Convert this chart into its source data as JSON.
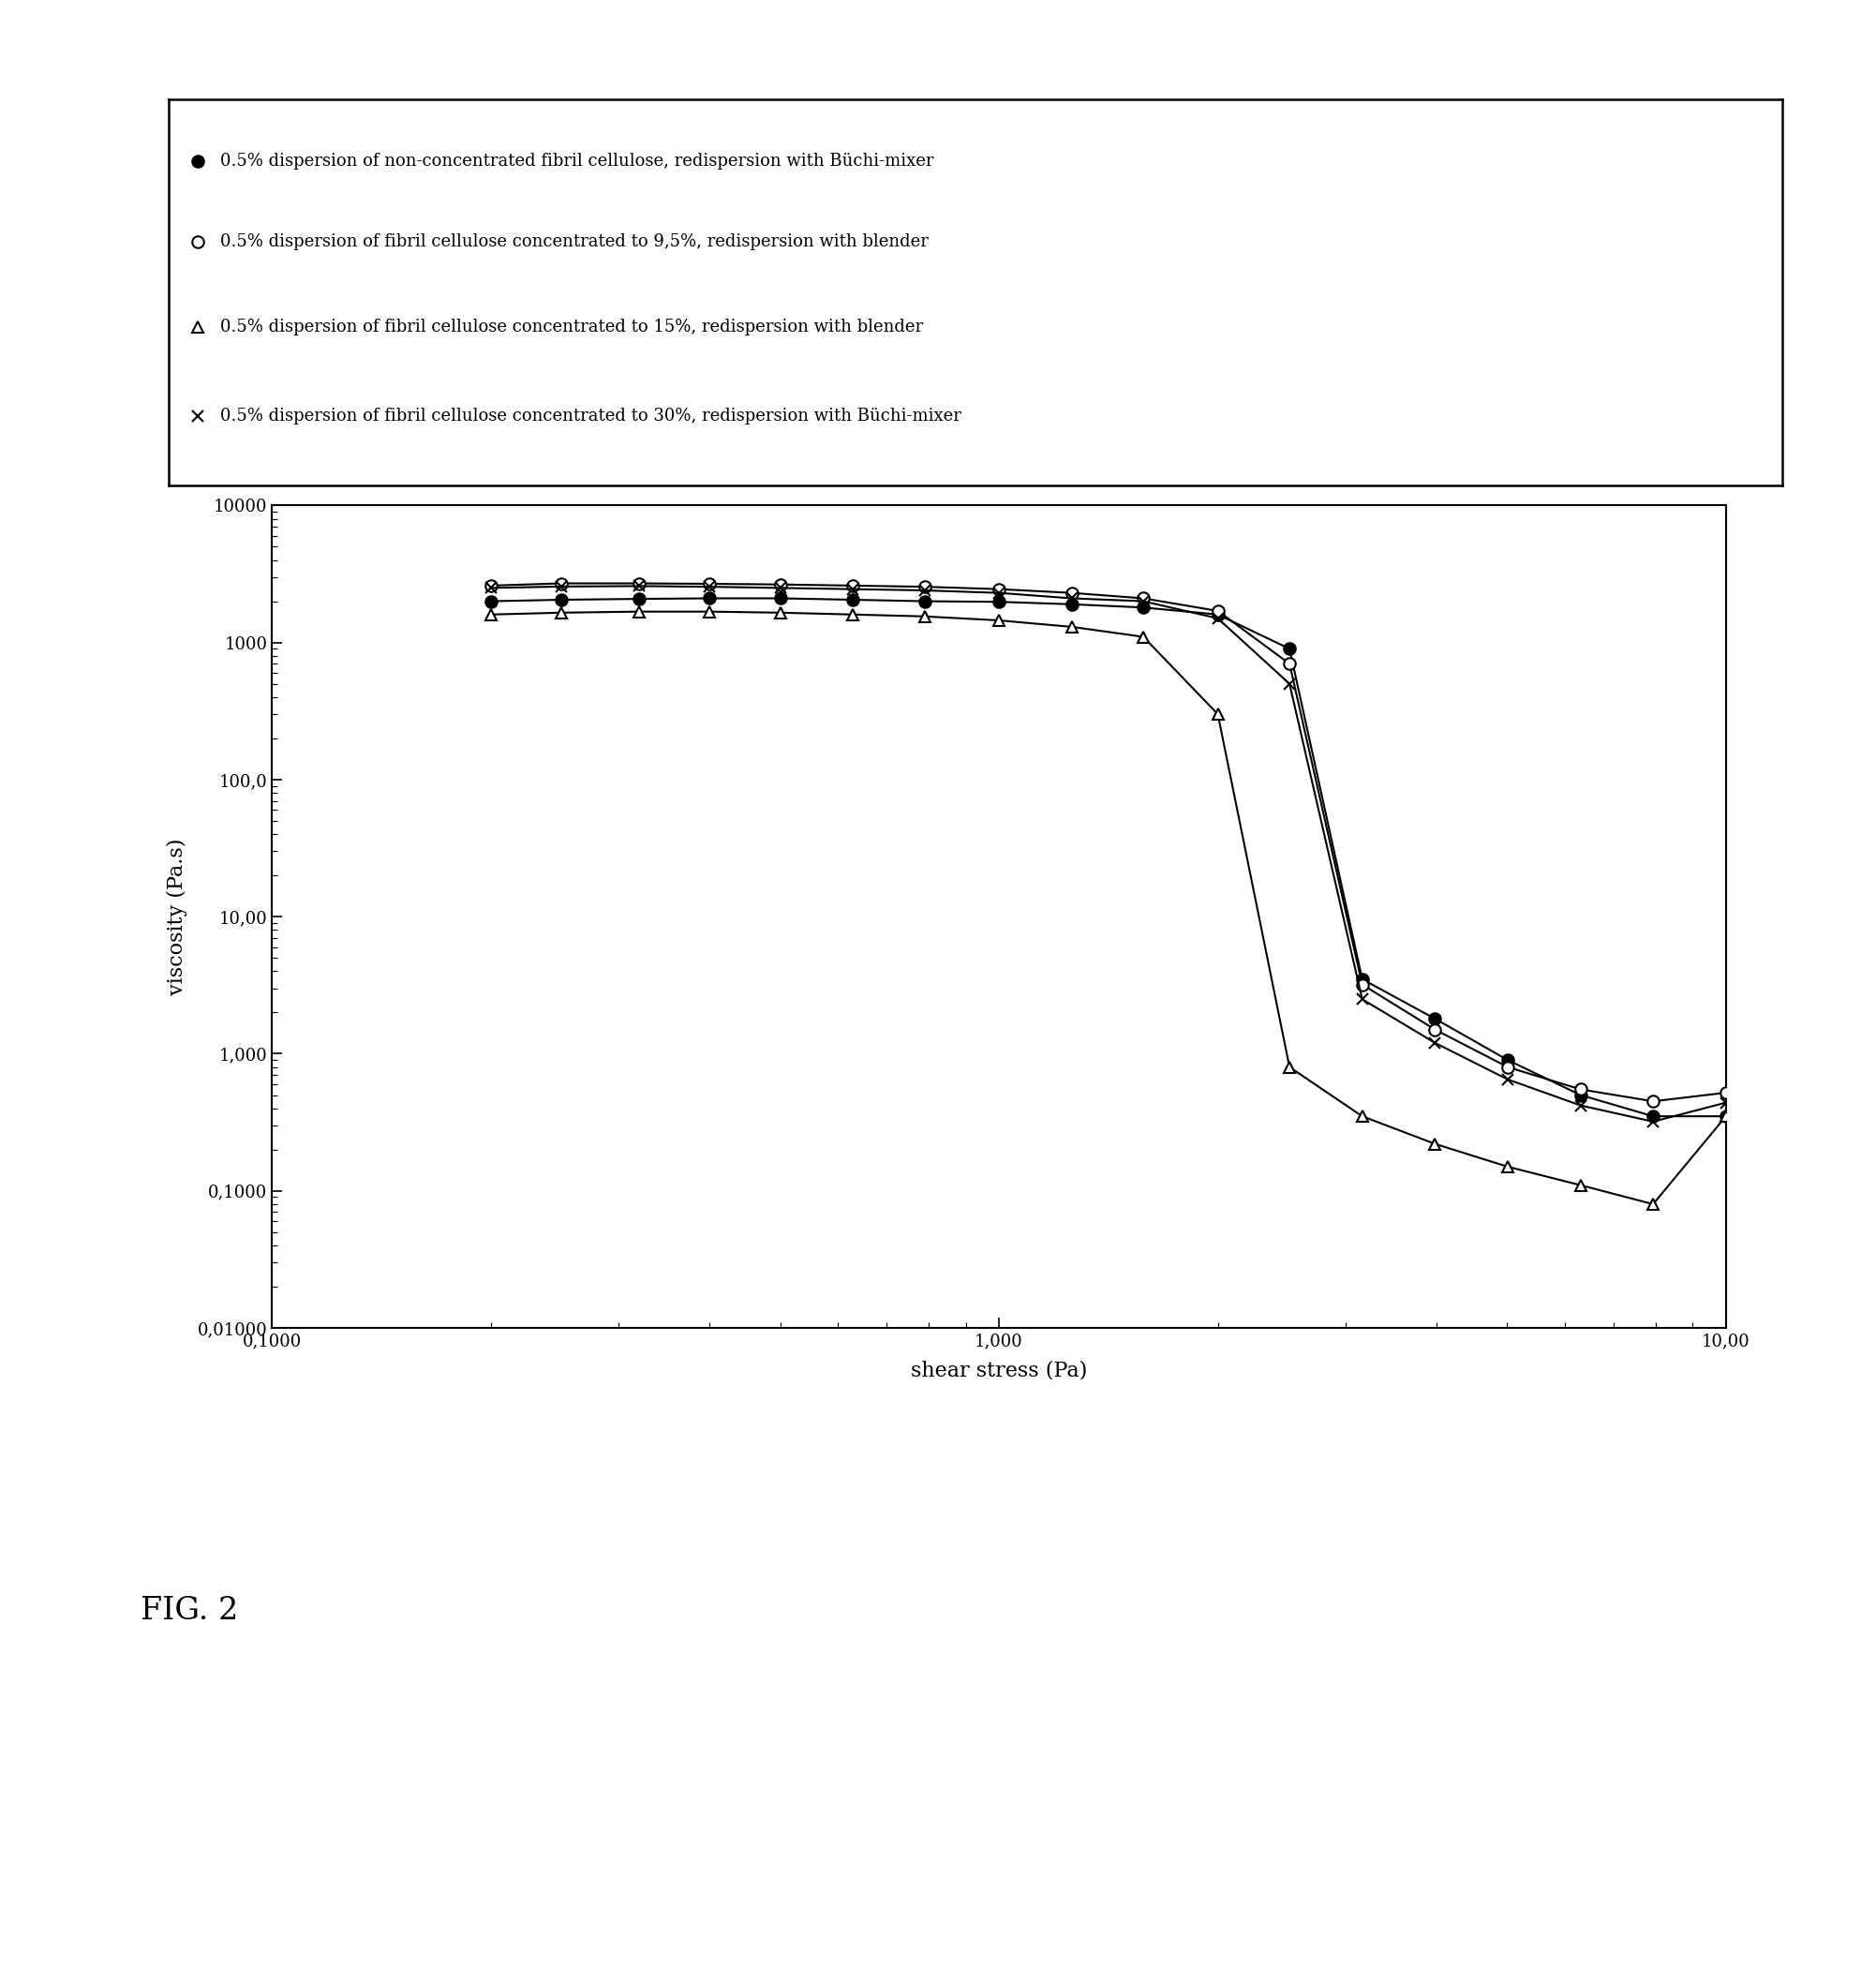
{
  "legend_entries": [
    "0.5% dispersion of non-concentrated fibril cellulose, redispersion with Büchi-mixer",
    "0.5% dispersion of fibril cellulose concentrated to 9,5%, redispersion with blender",
    "0.5% dispersion of fibril cellulose concentrated to 15%, redispersion with blender",
    "0.5% dispersion of fibril cellulose concentrated to 30%, redispersion with Büchi-mixer"
  ],
  "xlabel": "shear stress (Pa)",
  "ylabel": "viscosity (Pa.s)",
  "fig_label": "FIG. 2",
  "series": [
    {
      "name": "filled_circle",
      "x": [
        0.2,
        0.25,
        0.32,
        0.4,
        0.5,
        0.63,
        0.79,
        1.0,
        1.26,
        1.58,
        2.0,
        2.51,
        3.16,
        3.98,
        5.01,
        6.31,
        7.94,
        10.0
      ],
      "y": [
        2000,
        2050,
        2080,
        2100,
        2100,
        2050,
        2000,
        1980,
        1900,
        1800,
        1600,
        900,
        3.5,
        1.8,
        0.9,
        0.5,
        0.35,
        0.35
      ]
    },
    {
      "name": "open_circle",
      "x": [
        0.2,
        0.25,
        0.32,
        0.4,
        0.5,
        0.63,
        0.79,
        1.0,
        1.26,
        1.58,
        2.0,
        2.51,
        3.16,
        3.98,
        5.01,
        6.31,
        7.94,
        10.0
      ],
      "y": [
        2600,
        2700,
        2700,
        2680,
        2650,
        2600,
        2550,
        2450,
        2300,
        2100,
        1700,
        700,
        3.2,
        1.5,
        0.8,
        0.55,
        0.45,
        0.52
      ]
    },
    {
      "name": "open_triangle",
      "x": [
        0.2,
        0.25,
        0.32,
        0.4,
        0.5,
        0.63,
        0.79,
        1.0,
        1.26,
        1.58,
        2.0,
        2.51,
        3.16,
        3.98,
        5.01,
        6.31,
        7.94,
        10.0
      ],
      "y": [
        1600,
        1650,
        1680,
        1680,
        1650,
        1600,
        1550,
        1450,
        1300,
        1100,
        300,
        0.8,
        0.35,
        0.22,
        0.15,
        0.11,
        0.08,
        0.35
      ]
    },
    {
      "name": "x_marker",
      "x": [
        0.2,
        0.25,
        0.32,
        0.4,
        0.5,
        0.63,
        0.79,
        1.0,
        1.26,
        1.58,
        2.0,
        2.51,
        3.16,
        3.98,
        5.01,
        6.31,
        7.94,
        10.0
      ],
      "y": [
        2500,
        2560,
        2580,
        2550,
        2500,
        2450,
        2400,
        2300,
        2100,
        2000,
        1500,
        500,
        2.5,
        1.2,
        0.65,
        0.42,
        0.32,
        0.44
      ]
    }
  ],
  "xlim": [
    0.1,
    10.0
  ],
  "ylim": [
    0.01,
    10000
  ],
  "background_color": "#ffffff",
  "marker_size": 9,
  "linewidth": 1.5,
  "legend_fontsize": 13,
  "axis_fontsize": 16,
  "tick_fontsize": 13
}
